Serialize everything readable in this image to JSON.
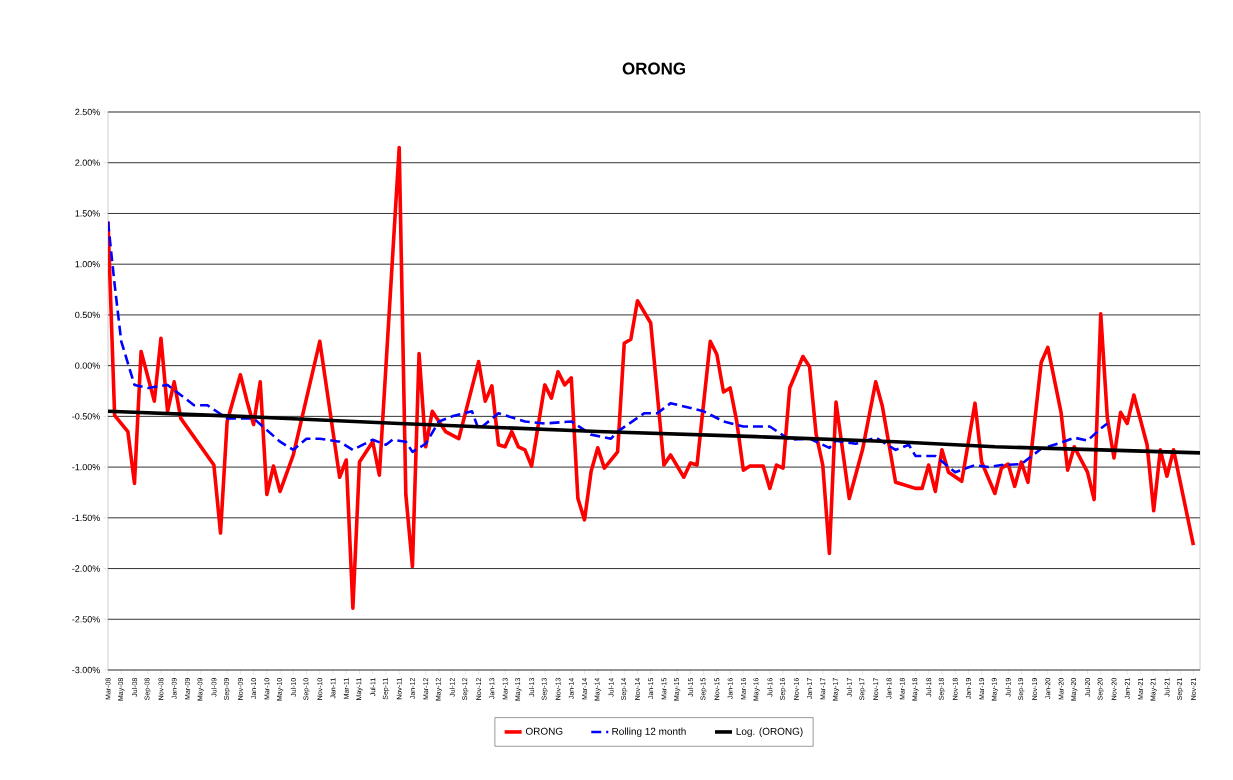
{
  "chart_data": {
    "type": "line",
    "title": "ORONG",
    "xlim": [
      "2008-03",
      "2021-12"
    ],
    "xticks": [
      {
        "value": "2008-03",
        "label": "Mar-08"
      },
      {
        "value": "2008-05",
        "label": "May-08"
      },
      {
        "value": "2008-07",
        "label": "Jul-08"
      },
      {
        "value": "2008-09",
        "label": "Sep-08"
      },
      {
        "value": "2008-11",
        "label": "Nov-08"
      },
      {
        "value": "2009-01",
        "label": "Jan-09"
      },
      {
        "value": "2009-03",
        "label": "Mar-09"
      },
      {
        "value": "2009-05",
        "label": "May-09"
      },
      {
        "value": "2009-07",
        "label": "Jul-09"
      },
      {
        "value": "2009-09",
        "label": "Sep-09"
      },
      {
        "value": "2009-11",
        "label": "Nov-09"
      },
      {
        "value": "2010-01",
        "label": "Jan-10"
      },
      {
        "value": "2010-03",
        "label": "Mar-10"
      },
      {
        "value": "2010-05",
        "label": "May-10"
      },
      {
        "value": "2010-07",
        "label": "Jul-10"
      },
      {
        "value": "2010-09",
        "label": "Sep-10"
      },
      {
        "value": "2010-11",
        "label": "Nov-10"
      },
      {
        "value": "2011-01",
        "label": "Jan-11"
      },
      {
        "value": "2011-03",
        "label": "Mar-11"
      },
      {
        "value": "2011-05",
        "label": "May-11"
      },
      {
        "value": "2011-07",
        "label": "Jul-11"
      },
      {
        "value": "2011-09",
        "label": "Sep-11"
      },
      {
        "value": "2011-11",
        "label": "Nov-11"
      },
      {
        "value": "2012-01",
        "label": "Jan-12"
      },
      {
        "value": "2012-03",
        "label": "Mar-12"
      },
      {
        "value": "2012-05",
        "label": "May-12"
      },
      {
        "value": "2012-07",
        "label": "Jul-12"
      },
      {
        "value": "2012-09",
        "label": "Sep-12"
      },
      {
        "value": "2012-11",
        "label": "Nov-12"
      },
      {
        "value": "2013-01",
        "label": "Jan-13"
      },
      {
        "value": "2013-03",
        "label": "Mar-13"
      },
      {
        "value": "2013-05",
        "label": "May-13"
      },
      {
        "value": "2013-07",
        "label": "Jul-13"
      },
      {
        "value": "2013-09",
        "label": "Sep-13"
      },
      {
        "value": "2013-11",
        "label": "Nov-13"
      },
      {
        "value": "2014-01",
        "label": "Jan-14"
      },
      {
        "value": "2014-03",
        "label": "Mar-14"
      },
      {
        "value": "2014-05",
        "label": "May-14"
      },
      {
        "value": "2014-07",
        "label": "Jul-14"
      },
      {
        "value": "2014-09",
        "label": "Sep-14"
      },
      {
        "value": "2014-11",
        "label": "Nov-14"
      },
      {
        "value": "2015-01",
        "label": "Jan-15"
      },
      {
        "value": "2015-03",
        "label": "Mar-15"
      },
      {
        "value": "2015-05",
        "label": "May-15"
      },
      {
        "value": "2015-07",
        "label": "Jul-15"
      },
      {
        "value": "2015-09",
        "label": "Sep-15"
      },
      {
        "value": "2015-11",
        "label": "Nov-15"
      },
      {
        "value": "2016-01",
        "label": "Jan-16"
      },
      {
        "value": "2016-03",
        "label": "Mar-16"
      },
      {
        "value": "2016-05",
        "label": "May-16"
      },
      {
        "value": "2016-07",
        "label": "Jul-16"
      },
      {
        "value": "2016-09",
        "label": "Sep-16"
      },
      {
        "value": "2016-11",
        "label": "Nov-16"
      },
      {
        "value": "2017-01",
        "label": "Jan-17"
      },
      {
        "value": "2017-03",
        "label": "Mar-17"
      },
      {
        "value": "2017-05",
        "label": "May-17"
      },
      {
        "value": "2017-07",
        "label": "Jul-17"
      },
      {
        "value": "2017-09",
        "label": "Sep-17"
      },
      {
        "value": "2017-11",
        "label": "Nov-17"
      },
      {
        "value": "2018-01",
        "label": "Jan-18"
      },
      {
        "value": "2018-03",
        "label": "Mar-18"
      },
      {
        "value": "2018-05",
        "label": "May-18"
      },
      {
        "value": "2018-07",
        "label": "Jul-18"
      },
      {
        "value": "2018-09",
        "label": "Sep-18"
      },
      {
        "value": "2018-11",
        "label": "Nov-18"
      },
      {
        "value": "2019-01",
        "label": "Jan-19"
      },
      {
        "value": "2019-03",
        "label": "Mar-19"
      },
      {
        "value": "2019-05",
        "label": "May-19"
      },
      {
        "value": "2019-07",
        "label": "Jul-19"
      },
      {
        "value": "2019-09",
        "label": "Sep-19"
      },
      {
        "value": "2019-11",
        "label": "Nov-19"
      },
      {
        "value": "2020-01",
        "label": "Jan-20"
      },
      {
        "value": "2020-03",
        "label": "Mar-20"
      },
      {
        "value": "2020-05",
        "label": "May-20"
      },
      {
        "value": "2020-07",
        "label": "Jul-20"
      },
      {
        "value": "2020-09",
        "label": "Sep-20"
      },
      {
        "value": "2020-11",
        "label": "Nov-20"
      },
      {
        "value": "2021-01",
        "label": "Jan-21"
      },
      {
        "value": "2021-03",
        "label": "Mar-21"
      },
      {
        "value": "2021-05",
        "label": "May-21"
      },
      {
        "value": "2021-07",
        "label": "Jul-21"
      },
      {
        "value": "2021-09",
        "label": "Sep-21"
      },
      {
        "value": "2021-11",
        "label": "Nov-21"
      }
    ],
    "ylim": [
      -3,
      2.5
    ],
    "yticks": [
      {
        "value": -3,
        "label": "-3.00%"
      },
      {
        "value": -2.5,
        "label": "-2.50%"
      },
      {
        "value": -2,
        "label": "-2.00%"
      },
      {
        "value": -1.5,
        "label": "-1.50%"
      },
      {
        "value": -1,
        "label": "-1.00%"
      },
      {
        "value": -0.5,
        "label": "-0.50%"
      },
      {
        "value": 0,
        "label": "0.00%"
      },
      {
        "value": 0.5,
        "label": "0.50%"
      },
      {
        "value": 1,
        "label": "1.00%"
      },
      {
        "value": 1.5,
        "label": "1.50%"
      },
      {
        "value": 2,
        "label": "2.00%"
      },
      {
        "value": 2.5,
        "label": "2.50%"
      }
    ],
    "grid": "y",
    "legend": "bottom",
    "series": [
      {
        "name": "ORONG",
        "color": "#ff0000",
        "line_style": "solid",
        "x": [
          "2008-03",
          "2008-04",
          "2008-06",
          "2008-07",
          "2008-08",
          "2008-10",
          "2008-11",
          "2008-12",
          "2009-01",
          "2009-02",
          "2009-07",
          "2009-08",
          "2009-09",
          "2009-11",
          "2009-12",
          "2010-01",
          "2010-02",
          "2010-03",
          "2010-04",
          "2010-05",
          "2010-07",
          "2010-11",
          "2011-02",
          "2011-03",
          "2011-04",
          "2011-05",
          "2011-07",
          "2011-08",
          "2011-11",
          "2011-12",
          "2012-01",
          "2012-02",
          "2012-03",
          "2012-04",
          "2012-06",
          "2012-08",
          "2012-11",
          "2012-12",
          "2013-01",
          "2013-02",
          "2013-03",
          "2013-04",
          "2013-05",
          "2013-06",
          "2013-07",
          "2013-09",
          "2013-10",
          "2013-11",
          "2013-12",
          "2014-01",
          "2014-02",
          "2014-03",
          "2014-04",
          "2014-05",
          "2014-06",
          "2014-08",
          "2014-09",
          "2014-10",
          "2014-11",
          "2015-01",
          "2015-03",
          "2015-04",
          "2015-06",
          "2015-07",
          "2015-08",
          "2015-10",
          "2015-11",
          "2015-12",
          "2016-01",
          "2016-02",
          "2016-03",
          "2016-04",
          "2016-06",
          "2016-07",
          "2016-08",
          "2016-09",
          "2016-10",
          "2016-12",
          "2017-01",
          "2017-02",
          "2017-03",
          "2017-04",
          "2017-05",
          "2017-07",
          "2017-09",
          "2017-11",
          "2017-12",
          "2018-02",
          "2018-03",
          "2018-05",
          "2018-06",
          "2018-07",
          "2018-08",
          "2018-09",
          "2018-10",
          "2018-12",
          "2019-02",
          "2019-03",
          "2019-05",
          "2019-06",
          "2019-07",
          "2019-08",
          "2019-09",
          "2019-10",
          "2019-12",
          "2020-01",
          "2020-03",
          "2020-04",
          "2020-05",
          "2020-07",
          "2020-08",
          "2020-09",
          "2020-10",
          "2020-11",
          "2020-12",
          "2021-01",
          "2021-02",
          "2021-04",
          "2021-05",
          "2021-06",
          "2021-07",
          "2021-08",
          "2021-11"
        ],
        "values": [
          1.42,
          -0.49,
          -0.65,
          -1.16,
          0.14,
          -0.35,
          0.27,
          -0.45,
          -0.16,
          -0.52,
          -0.98,
          -1.65,
          -0.55,
          -0.09,
          -0.35,
          -0.58,
          -0.16,
          -1.27,
          -0.99,
          -1.24,
          -0.88,
          0.24,
          -1.1,
          -0.93,
          -2.39,
          -0.95,
          -0.75,
          -1.08,
          2.15,
          -1.27,
          -1.98,
          0.12,
          -0.8,
          -0.45,
          -0.65,
          -0.72,
          0.04,
          -0.35,
          -0.2,
          -0.78,
          -0.8,
          -0.65,
          -0.8,
          -0.83,
          -0.99,
          -0.19,
          -0.32,
          -0.06,
          -0.19,
          -0.12,
          -1.31,
          -1.52,
          -1.04,
          -0.81,
          -1.01,
          -0.85,
          0.22,
          0.26,
          0.64,
          0.42,
          -0.98,
          -0.88,
          -1.1,
          -0.96,
          -0.98,
          0.24,
          0.11,
          -0.26,
          -0.22,
          -0.55,
          -1.03,
          -0.99,
          -0.99,
          -1.21,
          -0.98,
          -1.01,
          -0.22,
          0.09,
          -0.01,
          -0.68,
          -0.98,
          -1.85,
          -0.36,
          -1.31,
          -0.83,
          -0.16,
          -0.4,
          -1.15,
          -1.17,
          -1.21,
          -1.21,
          -0.98,
          -1.24,
          -0.83,
          -1.05,
          -1.14,
          -0.37,
          -0.95,
          -1.26,
          -1.01,
          -0.97,
          -1.19,
          -0.95,
          -1.15,
          0.03,
          0.18,
          -0.46,
          -1.03,
          -0.8,
          -1.05,
          -1.32,
          0.51,
          -0.52,
          -0.91,
          -0.46,
          -0.57,
          -0.29,
          -0.78,
          -1.43,
          -0.83,
          -1.09,
          -0.83,
          -1.77
        ]
      },
      {
        "name": "Rolling 12 month",
        "color": "#0000ff",
        "line_style": "dashed",
        "x": [
          "2008-03",
          "2008-04",
          "2008-05",
          "2008-07",
          "2008-09",
          "2008-12",
          "2009-04",
          "2009-06",
          "2009-09",
          "2010-01",
          "2010-05",
          "2010-07",
          "2010-09",
          "2010-11",
          "2011-02",
          "2011-04",
          "2011-07",
          "2011-09",
          "2011-10",
          "2011-12",
          "2012-01",
          "2012-03",
          "2012-05",
          "2012-07",
          "2012-10",
          "2012-11",
          "2013-02",
          "2013-06",
          "2013-09",
          "2014-01",
          "2014-04",
          "2014-07",
          "2014-08",
          "2014-12",
          "2015-02",
          "2015-04",
          "2015-09",
          "2015-12",
          "2016-03",
          "2016-07",
          "2016-10",
          "2017-01",
          "2017-04",
          "2017-05",
          "2017-08",
          "2017-11",
          "2018-02",
          "2018-04",
          "2018-05",
          "2018-08",
          "2018-11",
          "2019-02",
          "2019-04",
          "2019-06",
          "2019-09",
          "2019-12",
          "2020-03",
          "2020-05",
          "2020-07",
          "2020-09",
          "2020-10"
        ],
        "values": [
          1.42,
          0.8,
          0.24,
          -0.19,
          -0.22,
          -0.19,
          -0.39,
          -0.39,
          -0.52,
          -0.52,
          -0.75,
          -0.83,
          -0.72,
          -0.72,
          -0.75,
          -0.83,
          -0.73,
          -0.78,
          -0.73,
          -0.75,
          -0.85,
          -0.77,
          -0.55,
          -0.5,
          -0.45,
          -0.63,
          -0.47,
          -0.55,
          -0.57,
          -0.55,
          -0.68,
          -0.72,
          -0.65,
          -0.47,
          -0.47,
          -0.37,
          -0.45,
          -0.55,
          -0.6,
          -0.6,
          -0.73,
          -0.72,
          -0.81,
          -0.74,
          -0.77,
          -0.71,
          -0.83,
          -0.78,
          -0.89,
          -0.89,
          -1.05,
          -0.98,
          -1.0,
          -0.98,
          -0.97,
          -0.82,
          -0.76,
          -0.71,
          -0.74,
          -0.62,
          -0.57
        ]
      },
      {
        "name": "Log. (ORONG)",
        "color": "#000000",
        "line_style": "solid",
        "x": [
          "2008-03",
          "2009-11",
          "2011-11",
          "2014-05",
          "2016-05",
          "2018-02",
          "2019-05",
          "2020-09",
          "2021-12"
        ],
        "values": [
          -0.45,
          -0.5,
          -0.57,
          -0.65,
          -0.7,
          -0.75,
          -0.8,
          -0.83,
          -0.86
        ]
      }
    ]
  }
}
